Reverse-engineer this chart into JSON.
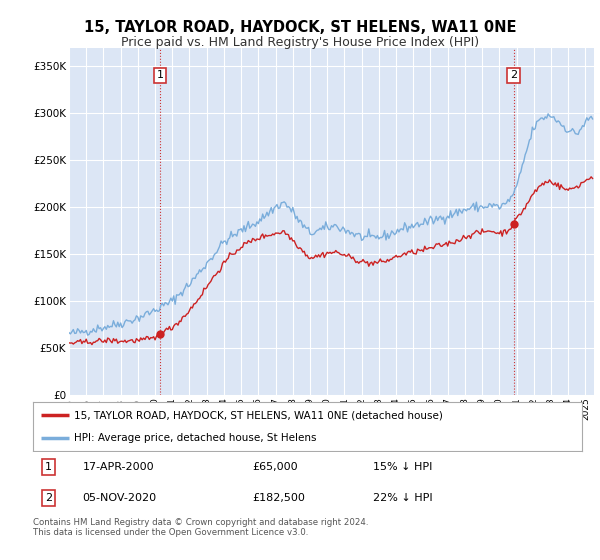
{
  "title": "15, TAYLOR ROAD, HAYDOCK, ST HELENS, WA11 0NE",
  "subtitle": "Price paid vs. HM Land Registry's House Price Index (HPI)",
  "title_fontsize": 10.5,
  "subtitle_fontsize": 9,
  "background_color": "#ffffff",
  "plot_bg_color": "#dce6f5",
  "grid_color": "#ffffff",
  "ylim": [
    0,
    370000
  ],
  "yticks": [
    0,
    50000,
    100000,
    150000,
    200000,
    250000,
    300000,
    350000
  ],
  "ytick_labels": [
    "£0",
    "£50K",
    "£100K",
    "£150K",
    "£200K",
    "£250K",
    "£300K",
    "£350K"
  ],
  "xlim_start": 1995.0,
  "xlim_end": 2025.5,
  "xtick_years": [
    1995,
    1996,
    1997,
    1998,
    1999,
    2000,
    2001,
    2002,
    2003,
    2004,
    2005,
    2006,
    2007,
    2008,
    2009,
    2010,
    2011,
    2012,
    2013,
    2014,
    2015,
    2016,
    2017,
    2018,
    2019,
    2020,
    2021,
    2022,
    2023,
    2024,
    2025
  ],
  "hpi_color": "#7aaddb",
  "price_color": "#cc2222",
  "dashed_line_color": "#cc3333",
  "annotation_labels": [
    "1",
    "2"
  ],
  "legend_label1": "15, TAYLOR ROAD, HAYDOCK, ST HELENS, WA11 0NE (detached house)",
  "legend_label2": "HPI: Average price, detached house, St Helens",
  "info1_num": "1",
  "info1_date": "17-APR-2000",
  "info1_price": "£65,000",
  "info1_hpi": "15% ↓ HPI",
  "info2_num": "2",
  "info2_date": "05-NOV-2020",
  "info2_price": "£182,500",
  "info2_hpi": "22% ↓ HPI",
  "footer": "Contains HM Land Registry data © Crown copyright and database right 2024.\nThis data is licensed under the Open Government Licence v3.0.",
  "sale_years": [
    2000.29,
    2020.84
  ],
  "sale_prices": [
    65000,
    182500
  ]
}
